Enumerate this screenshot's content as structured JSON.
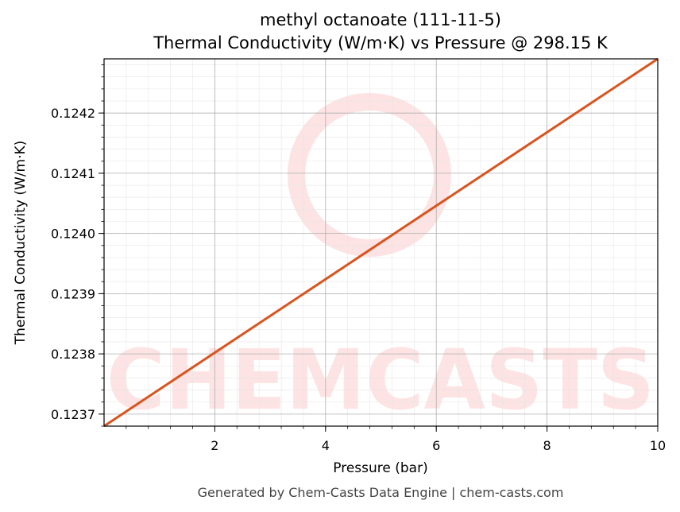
{
  "chart_data": {
    "type": "line",
    "title": "methyl octanoate (111-11-5)",
    "subtitle": "Thermal Conductivity (W/m·K) vs Pressure @ 298.15 K",
    "xlabel": "Pressure (bar)",
    "ylabel": "Thermal Conductivity (W/m·K)",
    "xlim": [
      0.0,
      10.0
    ],
    "ylim": [
      0.12368,
      0.12429
    ],
    "x_ticks": [
      2,
      4,
      6,
      8,
      10
    ],
    "x_tick_labels": [
      "2",
      "4",
      "6",
      "8",
      "10"
    ],
    "y_ticks": [
      0.1237,
      0.1238,
      0.1239,
      0.124,
      0.1241,
      0.1242
    ],
    "y_tick_labels": [
      "0.1237",
      "0.1238",
      "0.1239",
      "0.1240",
      "0.1241",
      "0.1242"
    ],
    "grid": true,
    "series": [
      {
        "color": "#d9541e",
        "x": [
          0.0,
          10.0
        ],
        "y": [
          0.12368,
          0.12429
        ]
      }
    ]
  },
  "watermark": {
    "text": "CHEMCASTS",
    "color": "#fde3e3"
  },
  "footer": "Generated by Chem-Casts Data Engine | chem-casts.com"
}
